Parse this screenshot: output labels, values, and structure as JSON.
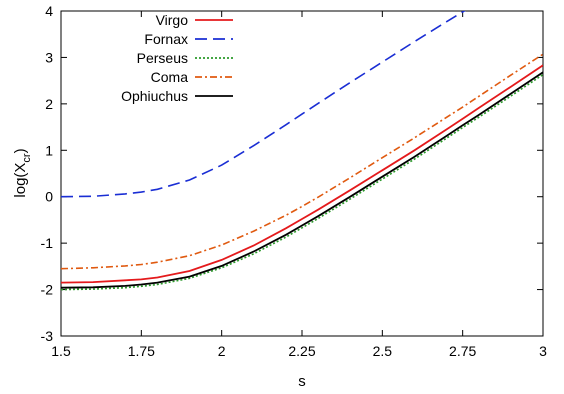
{
  "chart_data": {
    "type": "line",
    "xlabel": "s",
    "ylabel_main": "log(X",
    "ylabel_sub": "cr",
    "ylabel_close": ")",
    "xlim": [
      1.5,
      3.0
    ],
    "ylim": [
      -3,
      4
    ],
    "xticks": [
      "1.5",
      "1.75",
      "2",
      "2.25",
      "2.5",
      "2.75",
      "3"
    ],
    "yticks": [
      "-3",
      "-2",
      "-1",
      "0",
      "1",
      "2",
      "3",
      "4"
    ],
    "grid": false,
    "legend_position": "top-left",
    "series": [
      {
        "name": "Virgo",
        "color": "#e41a1c",
        "style": "solid",
        "x": [
          1.5,
          1.6,
          1.7,
          1.75,
          1.8,
          1.9,
          2.0,
          2.1,
          2.2,
          2.25,
          2.3,
          2.4,
          2.5,
          2.6,
          2.7,
          2.75,
          2.8,
          2.9,
          3.0
        ],
        "y": [
          -1.85,
          -1.84,
          -1.8,
          -1.78,
          -1.74,
          -1.6,
          -1.36,
          -1.05,
          -0.68,
          -0.48,
          -0.28,
          0.14,
          0.57,
          1.0,
          1.45,
          1.68,
          1.91,
          2.37,
          2.83
        ]
      },
      {
        "name": "Fornax",
        "color": "#1a2ed4",
        "style": "dashed",
        "x": [
          1.5,
          1.6,
          1.7,
          1.75,
          1.8,
          1.9,
          2.0,
          2.1,
          2.2,
          2.25,
          2.3,
          2.4,
          2.5,
          2.6,
          2.7,
          2.75,
          2.78
        ],
        "y": [
          0.0,
          0.01,
          0.06,
          0.1,
          0.16,
          0.36,
          0.68,
          1.1,
          1.55,
          1.78,
          2.01,
          2.46,
          2.9,
          3.34,
          3.77,
          3.98,
          4.1
        ]
      },
      {
        "name": "Perseus",
        "color": "#2a9a2a",
        "style": "dotted",
        "x": [
          1.5,
          1.6,
          1.7,
          1.75,
          1.8,
          1.9,
          2.0,
          2.1,
          2.2,
          2.25,
          2.3,
          2.4,
          2.5,
          2.6,
          2.7,
          2.75,
          2.8,
          2.9,
          3.0
        ],
        "y": [
          -2.0,
          -1.99,
          -1.96,
          -1.93,
          -1.89,
          -1.76,
          -1.53,
          -1.23,
          -0.87,
          -0.67,
          -0.47,
          -0.05,
          0.38,
          0.81,
          1.26,
          1.49,
          1.71,
          2.17,
          2.63
        ]
      },
      {
        "name": "Coma",
        "color": "#e05a10",
        "style": "dashdot",
        "x": [
          1.5,
          1.6,
          1.7,
          1.75,
          1.8,
          1.9,
          2.0,
          2.1,
          2.2,
          2.25,
          2.3,
          2.4,
          2.5,
          2.6,
          2.7,
          2.75,
          2.8,
          2.9,
          3.0
        ],
        "y": [
          -1.55,
          -1.53,
          -1.49,
          -1.46,
          -1.41,
          -1.27,
          -1.04,
          -0.74,
          -0.4,
          -0.21,
          -0.01,
          0.41,
          0.84,
          1.27,
          1.71,
          1.93,
          2.16,
          2.62,
          3.07
        ]
      },
      {
        "name": "Ophiuchus",
        "color": "#000000",
        "style": "solid",
        "x": [
          1.5,
          1.6,
          1.7,
          1.75,
          1.8,
          1.9,
          2.0,
          2.1,
          2.2,
          2.25,
          2.3,
          2.4,
          2.5,
          2.6,
          2.7,
          2.75,
          2.8,
          2.9,
          3.0
        ],
        "y": [
          -1.96,
          -1.95,
          -1.92,
          -1.89,
          -1.85,
          -1.72,
          -1.49,
          -1.18,
          -0.82,
          -0.62,
          -0.42,
          0.0,
          0.43,
          0.86,
          1.31,
          1.54,
          1.76,
          2.22,
          2.68
        ]
      }
    ]
  }
}
